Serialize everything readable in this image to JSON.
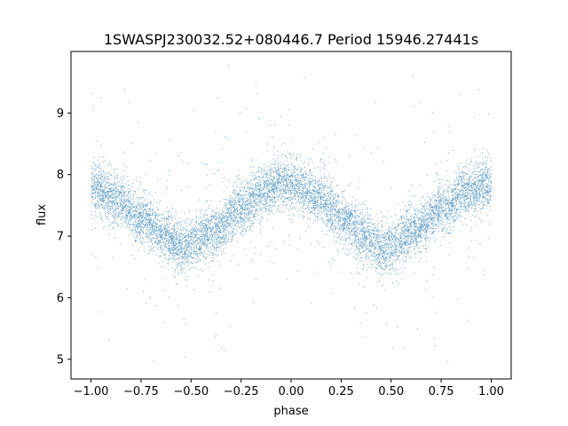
{
  "chart_data": {
    "type": "scatter",
    "title": "1SWASPJ230032.52+080446.7 Period 15946.27441s",
    "xlabel": "phase",
    "ylabel": "flux",
    "xlim": [
      -1.1,
      1.1
    ],
    "ylim": [
      4.68,
      10.0
    ],
    "xticks": [
      -1.0,
      -0.75,
      -0.5,
      -0.25,
      0.0,
      0.25,
      0.5,
      0.75,
      1.0
    ],
    "xtick_labels": [
      "−1.00",
      "−0.75",
      "−0.50",
      "−0.25",
      "0.00",
      "0.25",
      "0.50",
      "0.75",
      "1.00"
    ],
    "yticks": [
      5,
      6,
      7,
      8,
      9
    ],
    "ytick_labels": [
      "5",
      "6",
      "7",
      "8",
      "9"
    ],
    "grid": false,
    "legend": "none",
    "point_color": "#1f77b4",
    "series": [
      {
        "phase_range": [
          -1.0,
          1.0
        ],
        "trend_x": [
          -1.0,
          -0.875,
          -0.75,
          -0.625,
          -0.55,
          -0.5,
          -0.375,
          -0.25,
          -0.125,
          -0.05,
          0.0,
          0.125,
          0.25,
          0.375,
          0.45,
          0.5,
          0.625,
          0.75,
          0.875,
          1.0
        ],
        "trend_y": [
          7.8,
          7.6,
          7.3,
          7.0,
          6.85,
          6.88,
          7.1,
          7.45,
          7.75,
          7.88,
          7.85,
          7.65,
          7.3,
          7.0,
          6.8,
          6.87,
          7.1,
          7.45,
          7.72,
          7.85
        ],
        "scatter_sigma": 0.2,
        "outlier_range": [
          4.9,
          9.8
        ]
      }
    ]
  }
}
